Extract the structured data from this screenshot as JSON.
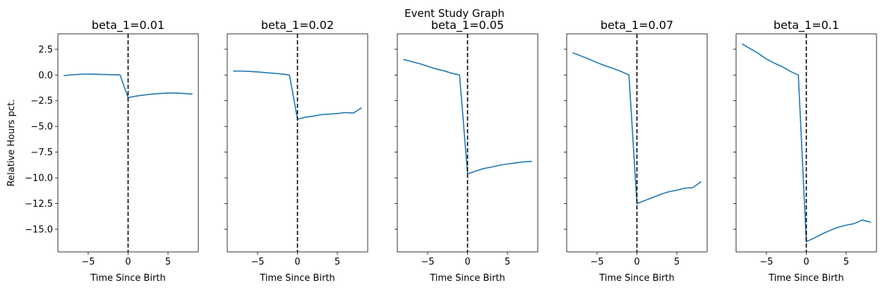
{
  "figure": {
    "suptitle": "Event Study Graph"
  },
  "chart_data": [
    {
      "type": "line",
      "title": "beta_1=0.01",
      "xlabel": "Time Since Birth",
      "ylabel": "Relative Hours pct.",
      "xlim": [
        -8.8,
        8.8
      ],
      "ylim": [
        -17.2,
        4.0
      ],
      "xticks": [
        -5,
        0,
        5
      ],
      "xtick_labels": [
        "−5",
        "0",
        "5"
      ],
      "yticks": [
        2.5,
        0.0,
        -2.5,
        -5.0,
        -7.5,
        -10.0,
        -12.5,
        -15.0
      ],
      "ytick_labels": [
        "2.5",
        "0.0",
        "−2.5",
        "−5.0",
        "−7.5",
        "−10.0",
        "−12.5",
        "−15.0"
      ],
      "event_line_x": 0,
      "series": [
        {
          "color": "#1f77b4",
          "x": [
            -8,
            -7,
            -6,
            -5,
            -4,
            -3,
            -2,
            -1,
            0,
            1,
            2,
            3,
            4,
            5,
            6,
            7,
            8
          ],
          "y": [
            -0.05,
            0.02,
            0.07,
            0.09,
            0.07,
            0.05,
            0.03,
            0.0,
            -2.2,
            -2.05,
            -1.95,
            -1.85,
            -1.8,
            -1.75,
            -1.75,
            -1.8,
            -1.85
          ]
        }
      ]
    },
    {
      "type": "line",
      "title": "beta_1=0.02",
      "xlabel": "Time Since Birth",
      "xlim": [
        -8.8,
        8.8
      ],
      "ylim": [
        -17.2,
        4.0
      ],
      "xticks": [
        -5,
        0,
        5
      ],
      "xtick_labels": [
        "−5",
        "0",
        "5"
      ],
      "event_line_x": 0,
      "series": [
        {
          "color": "#1f77b4",
          "x": [
            -8,
            -7,
            -6,
            -5,
            -4,
            -3,
            -2,
            -1,
            0,
            1,
            2,
            3,
            4,
            5,
            6,
            7,
            8
          ],
          "y": [
            0.38,
            0.38,
            0.35,
            0.3,
            0.23,
            0.17,
            0.1,
            0.0,
            -4.3,
            -4.1,
            -4.0,
            -3.85,
            -3.8,
            -3.75,
            -3.65,
            -3.7,
            -3.2
          ]
        }
      ]
    },
    {
      "type": "line",
      "title": "beta_1=0.05",
      "xlabel": "Time Since Birth",
      "xlim": [
        -8.8,
        8.8
      ],
      "ylim": [
        -17.2,
        4.0
      ],
      "xticks": [
        -5,
        0,
        5
      ],
      "xtick_labels": [
        "−5",
        "0",
        "5"
      ],
      "event_line_x": 0,
      "series": [
        {
          "color": "#1f77b4",
          "x": [
            -8,
            -7,
            -6,
            -5,
            -4,
            -3,
            -2,
            -1,
            0,
            1,
            2,
            3,
            4,
            5,
            6,
            7,
            8
          ],
          "y": [
            1.5,
            1.3,
            1.1,
            0.85,
            0.6,
            0.42,
            0.18,
            0.0,
            -9.6,
            -9.35,
            -9.1,
            -8.95,
            -8.78,
            -8.65,
            -8.55,
            -8.45,
            -8.4
          ]
        }
      ]
    },
    {
      "type": "line",
      "title": "beta_1=0.07",
      "xlabel": "Time Since Birth",
      "xlim": [
        -8.8,
        8.8
      ],
      "ylim": [
        -17.2,
        4.0
      ],
      "xticks": [
        -5,
        0,
        5
      ],
      "xtick_labels": [
        "−5",
        "0",
        "5"
      ],
      "event_line_x": 0,
      "series": [
        {
          "color": "#1f77b4",
          "x": [
            -8,
            -7,
            -6,
            -5,
            -4,
            -3,
            -2,
            -1,
            0,
            1,
            2,
            3,
            4,
            5,
            6,
            7,
            8
          ],
          "y": [
            2.15,
            1.85,
            1.55,
            1.2,
            0.9,
            0.65,
            0.35,
            0.0,
            -12.5,
            -12.2,
            -11.9,
            -11.6,
            -11.35,
            -11.2,
            -11.0,
            -10.95,
            -10.4
          ]
        }
      ]
    },
    {
      "type": "line",
      "title": "beta_1=0.1",
      "xlabel": "Time Since Birth",
      "xlim": [
        -8.8,
        8.8
      ],
      "ylim": [
        -17.2,
        4.0
      ],
      "xticks": [
        -5,
        0,
        5
      ],
      "xtick_labels": [
        "−5",
        "0",
        "5"
      ],
      "event_line_x": 0,
      "series": [
        {
          "color": "#1f77b4",
          "x": [
            -8,
            -7,
            -6,
            -5,
            -4,
            -3,
            -2,
            -1,
            0,
            1,
            2,
            3,
            4,
            5,
            6,
            7,
            8
          ],
          "y": [
            3.0,
            2.55,
            2.1,
            1.55,
            1.15,
            0.8,
            0.35,
            0.0,
            -16.2,
            -15.85,
            -15.45,
            -15.1,
            -14.8,
            -14.6,
            -14.45,
            -14.1,
            -14.3
          ]
        }
      ]
    }
  ]
}
